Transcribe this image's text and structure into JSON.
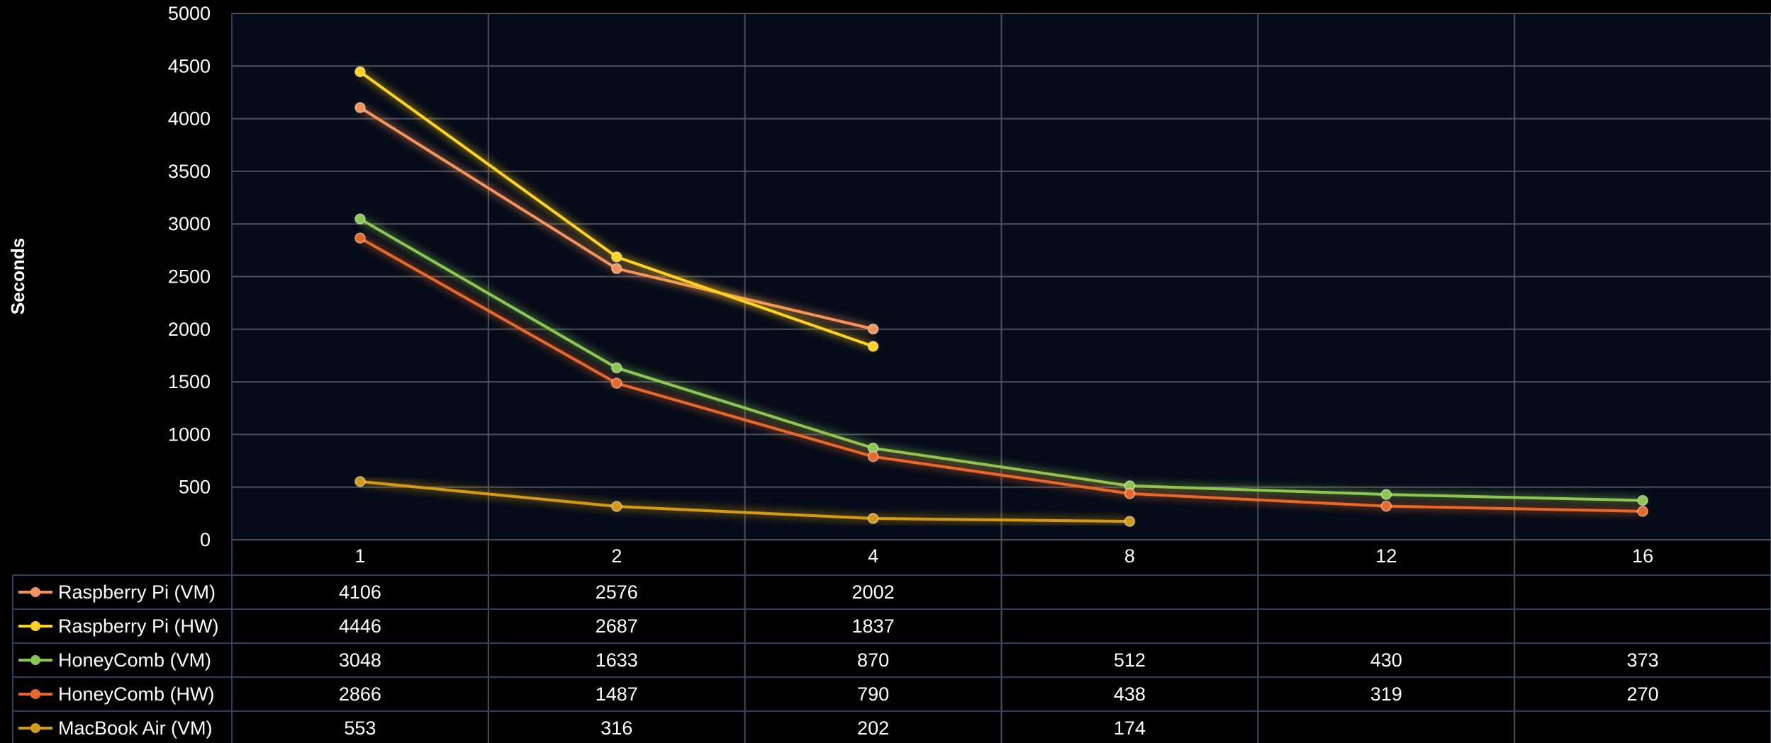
{
  "chart_data": {
    "type": "line",
    "title": "",
    "xlabel": "",
    "ylabel": "Seconds",
    "categories": [
      "1",
      "2",
      "4",
      "8",
      "12",
      "16"
    ],
    "ylim": [
      0,
      5000
    ],
    "yticks": [
      "0",
      "500",
      "1000",
      "1500",
      "2000",
      "2500",
      "3000",
      "3500",
      "4000",
      "4500",
      "5000"
    ],
    "grid": true,
    "legend": "data-table-below",
    "series": [
      {
        "name": "Raspberry Pi (VM)",
        "color": "#f4945a",
        "values": [
          4106,
          2576,
          2002,
          null,
          null,
          null
        ]
      },
      {
        "name": "Raspberry Pi (HW)",
        "color": "#ffd21f",
        "values": [
          4446,
          2687,
          1837,
          null,
          null,
          null
        ]
      },
      {
        "name": "HoneyComb (VM)",
        "color": "#8cc751",
        "values": [
          3048,
          1633,
          870,
          512,
          430,
          373
        ]
      },
      {
        "name": "HoneyComb (HW)",
        "color": "#e8682a",
        "values": [
          2866,
          1487,
          790,
          438,
          319,
          270
        ]
      },
      {
        "name": "MacBook Air (VM)",
        "color": "#d49a18",
        "values": [
          553,
          316,
          202,
          174,
          null,
          null
        ]
      }
    ]
  }
}
